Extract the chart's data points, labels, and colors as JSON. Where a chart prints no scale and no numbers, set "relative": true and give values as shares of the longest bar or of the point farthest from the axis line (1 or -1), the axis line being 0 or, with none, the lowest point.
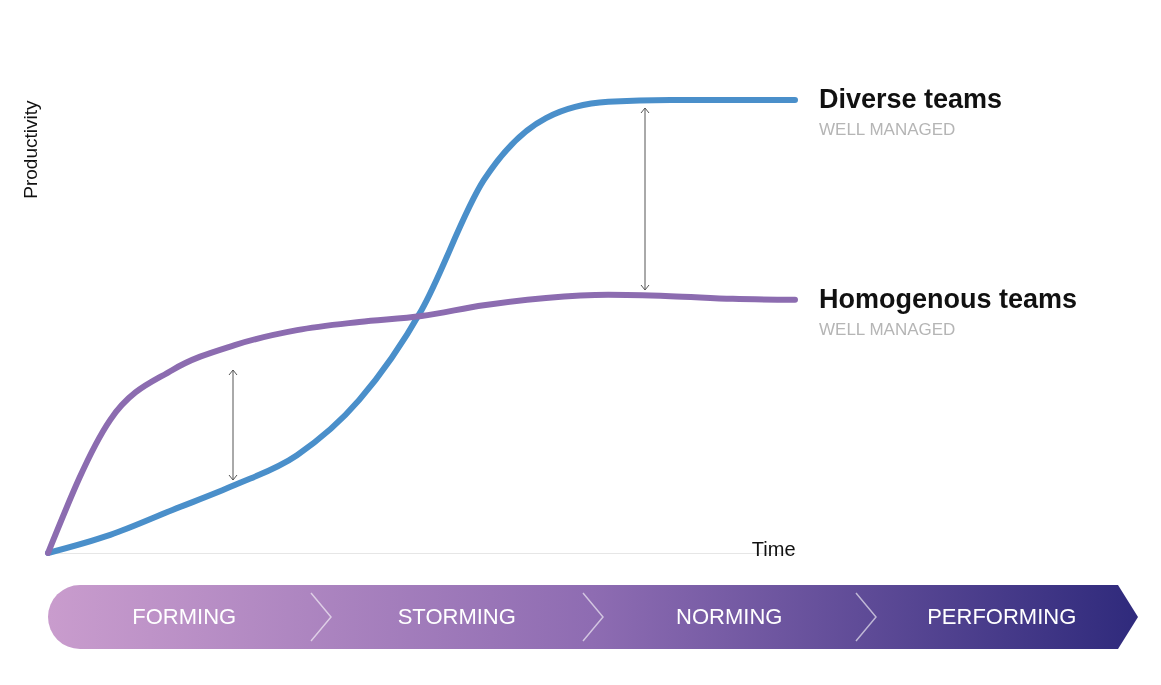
{
  "chart_data": {
    "type": "line",
    "relative": true,
    "xlabel": "Time",
    "ylabel": "Productivity",
    "legend": false,
    "categories": [
      null,
      null,
      null,
      null,
      null,
      null,
      null,
      null,
      null,
      null,
      null,
      null,
      null
    ],
    "series": [
      {
        "name": "Diverse teams",
        "color": "#4a8fca",
        "values": [
          0,
          0.04,
          0.095,
          0.15,
          0.216,
          0.338,
          0.536,
          0.823,
          0.96,
          0.996,
          1,
          1,
          1
        ]
      },
      {
        "name": "Homogenous teams",
        "color": "#8c6cb0",
        "values": [
          0,
          0.294,
          0.404,
          0.459,
          0.492,
          0.51,
          0.523,
          0.547,
          0.563,
          0.57,
          0.567,
          0.561,
          0.559
        ]
      }
    ],
    "annotations": [
      "WELL MANAGED",
      "WELL MANAGED",
      "FORMING",
      "STORMING",
      "NORMING",
      "PERFORMING"
    ]
  }
}
